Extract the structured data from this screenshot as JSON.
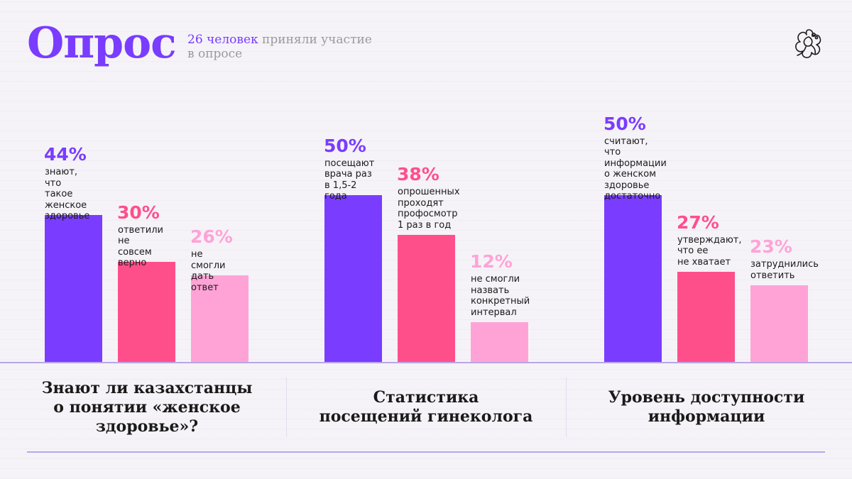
{
  "header": {
    "title": "Опрос",
    "subtitle_count": "26 человек",
    "subtitle_rest": " приняли участие в опросе"
  },
  "colors": {
    "purple": "#7a3cff",
    "pink": "#ff4f8b",
    "light_pink": "#ffa3d7"
  },
  "logo": {
    "icon": "flower-logo-icon"
  },
  "chart_data": [
    {
      "type": "bar",
      "title": "Знают ли казахстанцы\nо понятии «женское\nздоровье»?",
      "bars": [
        {
          "value": 44,
          "label": "44%",
          "desc": "знают,\nчто такое\nженское\nздоровье",
          "color": "#7a3cff"
        },
        {
          "value": 30,
          "label": "30%",
          "desc": "ответили\nне совсем\nверно",
          "color": "#ff4f8b"
        },
        {
          "value": 26,
          "label": "26%",
          "desc": "не смогли\nдать ответ",
          "color": "#ffa3d7"
        }
      ]
    },
    {
      "type": "bar",
      "title": "Статистика\nпосещений гинеколога",
      "bars": [
        {
          "value": 50,
          "label": "50%",
          "desc": "посещают\nврача раз\nв 1,5-2 года",
          "color": "#7a3cff"
        },
        {
          "value": 38,
          "label": "38%",
          "desc": "опрошенных\nпроходят\nпрофосмотр\n1 раз в год",
          "color": "#ff4f8b"
        },
        {
          "value": 12,
          "label": "12%",
          "desc": "не смогли\nназвать\nконкретный\nинтервал",
          "color": "#ffa3d7"
        }
      ]
    },
    {
      "type": "bar",
      "title": "Уровень доступности\nинформации",
      "bars": [
        {
          "value": 50,
          "label": "50%",
          "desc": "считают, что\nинформации\nо женском\nздоровье\nдостаточно",
          "color": "#7a3cff"
        },
        {
          "value": 27,
          "label": "27%",
          "desc": "утверждают,\nчто ее\nне хватает",
          "color": "#ff4f8b"
        },
        {
          "value": 23,
          "label": "23%",
          "desc": "затруднились\nответить",
          "color": "#ffa3d7"
        }
      ]
    }
  ]
}
